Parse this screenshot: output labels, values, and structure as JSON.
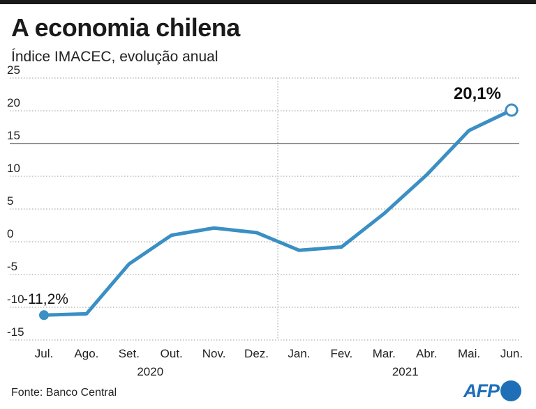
{
  "title": "A economia chilena",
  "subtitle": "Índice IMACEC, evolução anual",
  "source": "Fonte: Banco Central",
  "logo": {
    "text": "AFP",
    "color": "#1f6fb8"
  },
  "chart_data": {
    "type": "line",
    "title": "A economia chilena",
    "subtitle": "Índice IMACEC, evolução anual",
    "categories": [
      "Jul.",
      "Ago.",
      "Set.",
      "Out.",
      "Nov.",
      "Dez.",
      "Jan.",
      "Fev.",
      "Mar.",
      "Abr.",
      "Mai.",
      "Jun."
    ],
    "years": [
      {
        "label": "2020",
        "from": 0,
        "to": 5
      },
      {
        "label": "2021",
        "from": 6,
        "to": 11
      }
    ],
    "series": [
      {
        "values": [
          -11.2,
          -11.0,
          -3.4,
          1.0,
          2.1,
          1.4,
          -1.3,
          -0.8,
          4.3,
          10.2,
          17.0,
          20.1
        ],
        "color": "#3a8fc4"
      }
    ],
    "yticks": [
      25,
      20,
      15,
      10,
      5,
      0,
      -5,
      -10,
      -15
    ],
    "ylim": [
      -15,
      25
    ],
    "reference_line": 15,
    "grid": "dotted-horizontal",
    "annotations": {
      "start": "-11,2%",
      "end": "20,1%"
    }
  }
}
